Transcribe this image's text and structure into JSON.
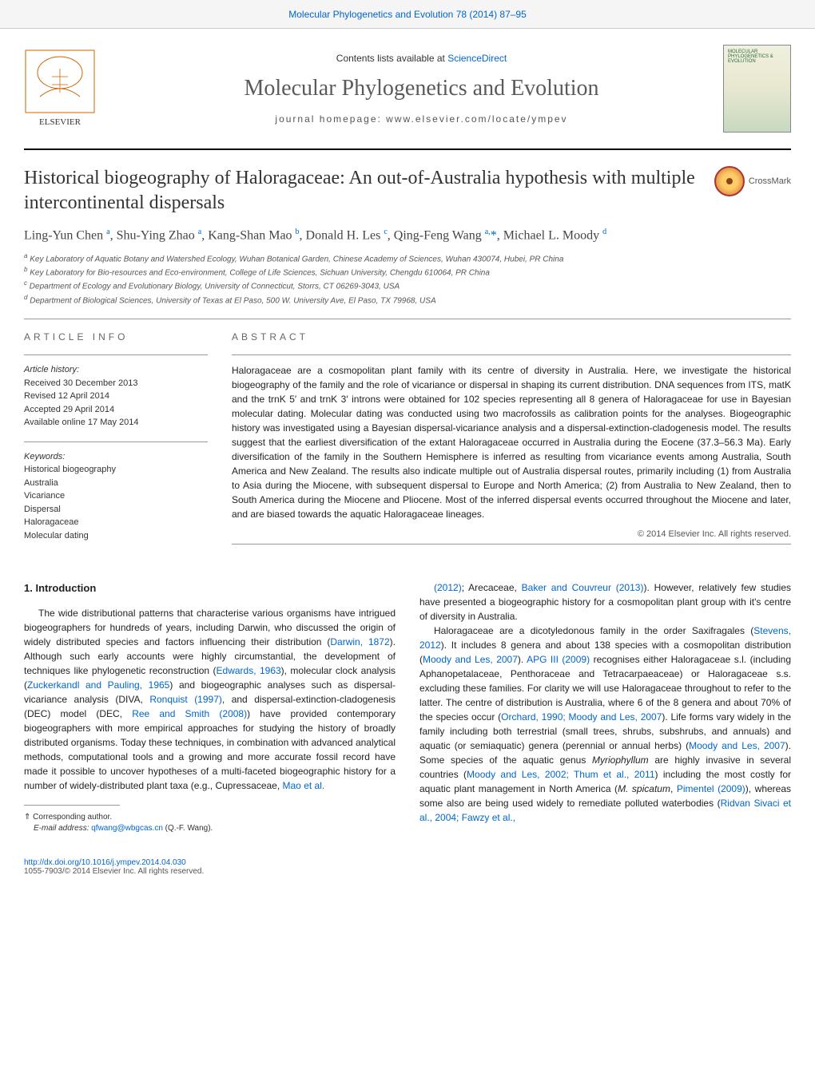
{
  "header_link": "Molecular Phylogenetics and Evolution 78 (2014) 87–95",
  "contents_line_prefix": "Contents lists available at ",
  "contents_line_link": "ScienceDirect",
  "journal_title": "Molecular Phylogenetics and Evolution",
  "homepage_line": "journal homepage: www.elsevier.com/locate/ympev",
  "cover_text": "MOLECULAR PHYLOGENETICS & EVOLUTION",
  "article_title": "Historical biogeography of Haloragaceae: An out-of-Australia hypothesis with multiple intercontinental dispersals",
  "crossmark_label": "CrossMark",
  "authors_html": "Ling-Yun Chen <sup>a</sup>, Shu-Ying Zhao <sup>a</sup>, Kang-Shan Mao <sup>b</sup>, Donald H. Les <sup>c</sup>, Qing-Feng Wang <sup>a,</sup><span class='ast'>*</span>, Michael L. Moody <sup>d</sup>",
  "affiliations": {
    "a": "Key Laboratory of Aquatic Botany and Watershed Ecology, Wuhan Botanical Garden, Chinese Academy of Sciences, Wuhan 430074, Hubei, PR China",
    "b": "Key Laboratory for Bio-resources and Eco-environment, College of Life Sciences, Sichuan University, Chengdu 610064, PR China",
    "c": "Department of Ecology and Evolutionary Biology, University of Connecticut, Storrs, CT 06269-3043, USA",
    "d": "Department of Biological Sciences, University of Texas at El Paso, 500 W. University Ave, El Paso, TX 79968, USA"
  },
  "article_info_label": "ARTICLE INFO",
  "abstract_label": "ABSTRACT",
  "history_label": "Article history:",
  "history": {
    "received": "Received 30 December 2013",
    "revised": "Revised 12 April 2014",
    "accepted": "Accepted 29 April 2014",
    "online": "Available online 17 May 2014"
  },
  "keywords_label": "Keywords:",
  "keywords": [
    "Historical biogeography",
    "Australia",
    "Vicariance",
    "Dispersal",
    "Haloragaceae",
    "Molecular dating"
  ],
  "abstract_text": "Haloragaceae are a cosmopolitan plant family with its centre of diversity in Australia. Here, we investigate the historical biogeography of the family and the role of vicariance or dispersal in shaping its current distribution. DNA sequences from ITS, matK and the trnK 5′ and trnK 3′ introns were obtained for 102 species representing all 8 genera of Haloragaceae for use in Bayesian molecular dating. Molecular dating was conducted using two macrofossils as calibration points for the analyses. Biogeographic history was investigated using a Bayesian dispersal-vicariance analysis and a dispersal-extinction-cladogenesis model. The results suggest that the earliest diversification of the extant Haloragaceae occurred in Australia during the Eocene (37.3–56.3 Ma). Early diversification of the family in the Southern Hemisphere is inferred as resulting from vicariance events among Australia, South America and New Zealand. The results also indicate multiple out of Australia dispersal routes, primarily including (1) from Australia to Asia during the Miocene, with subsequent dispersal to Europe and North America; (2) from Australia to New Zealand, then to South America during the Miocene and Pliocene. Most of the inferred dispersal events occurred throughout the Miocene and later, and are biased towards the aquatic Haloragaceae lineages.",
  "copyright_line": "© 2014 Elsevier Inc. All rights reserved.",
  "intro_heading": "1. Introduction",
  "col1_html": "The wide distributional patterns that characterise various organisms have intrigued biogeographers for hundreds of years, including Darwin, who discussed the origin of widely distributed species and factors influencing their distribution (<a href='#'>Darwin, 1872</a>). Although such early accounts were highly circumstantial, the development of techniques like phylogenetic reconstruction (<a href='#'>Edwards, 1963</a>), molecular clock analysis (<a href='#'>Zuckerkandl and Pauling, 1965</a>) and biogeographic analyses such as dispersal-vicariance analysis (DIVA, <a href='#'>Ronquist (1997)</a>, and dispersal-extinction-cladogenesis (DEC) model (DEC, <a href='#'>Ree and Smith (2008)</a>) have provided contemporary biogeographers with more empirical approaches for studying the history of broadly distributed organisms. Today these techniques, in combination with advanced analytical methods, computational tools and a growing and more accurate fossil record have made it possible to uncover hypotheses of a multi-faceted biogeographic history for a number of widely-distributed plant taxa (e.g., Cupressaceae, <a href='#'>Mao et al.</a>",
  "col2_html": "<a href='#'>(2012)</a>; Arecaceae, <a href='#'>Baker and Couvreur (2013)</a>). However, relatively few studies have presented a biogeographic history for a cosmopolitan plant group with it's centre of diversity in Australia.</p><p>Haloragaceae are a dicotyledonous family in the order Saxifragales (<a href='#'>Stevens, 2012</a>). It includes 8 genera and about 138 species with a cosmopolitan distribution (<a href='#'>Moody and Les, 2007</a>). <a href='#'>APG III (2009)</a> recognises either Haloragaceae s.l. (including Aphanopetalaceae, Penthoraceae and Tetracarpaeaceae) or Haloragaceae s.s. excluding these families. For clarity we will use Haloragaceae throughout to refer to the latter. The centre of distribution is Australia, where 6 of the 8 genera and about 70% of the species occur (<a href='#'>Orchard, 1990; Moody and Les, 2007</a>). Life forms vary widely in the family including both terrestrial (small trees, shrubs, subshrubs, and annuals) and aquatic (or semiaquatic) genera (perennial or annual herbs) (<a href='#'>Moody and Les, 2007</a>). Some species of the aquatic genus <em>Myriophyllum</em> are highly invasive in several countries (<a href='#'>Moody and Les, 2002; Thum et al., 2011</a>) including the most costly for aquatic plant management in North America (<em>M. spicatum</em>, <a href='#'>Pimentel (2009)</a>), whereas some also are being used widely to remediate polluted waterbodies (<a href='#'>Ridvan Sivaci et al., 2004; Fawzy et al.,</a>",
  "corresponding_label": "⇑ Corresponding author.",
  "email_line_prefix": "E-mail address: ",
  "email_address": "qfwang@wbgcas.cn",
  "email_suffix": " (Q.-F. Wang).",
  "doi_url": "http://dx.doi.org/10.1016/j.ympev.2014.04.030",
  "issn_line": "1055-7903/© 2014 Elsevier Inc. All rights reserved.",
  "colors": {
    "link": "#0066cc",
    "text": "#222222",
    "muted": "#555555",
    "rule": "#999999"
  }
}
